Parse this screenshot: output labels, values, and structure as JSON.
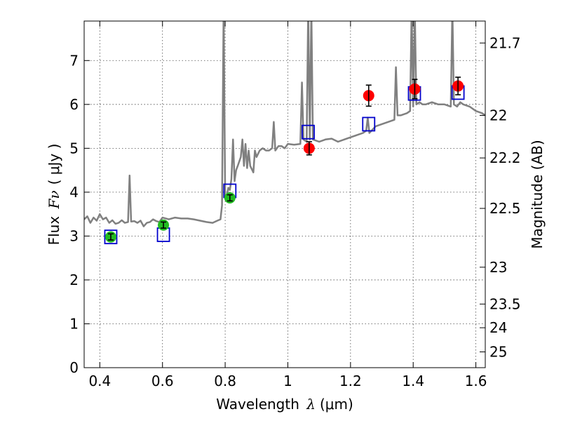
{
  "chart_data": {
    "type": "scatter",
    "xlabel": "Wavelength λ (μm)",
    "xlabel_parts": {
      "prefix": "Wavelength ",
      "symbol": "λ",
      "unit": "(μm)"
    },
    "ylabel": "Flux Fν (μJy)",
    "ylabel_parts": {
      "prefix": "Flux ",
      "symbol": "Fν",
      "unit": "( μJy )"
    },
    "y2label": "Magnitude (AB)",
    "xlim": [
      0.35,
      1.63
    ],
    "ylim": [
      0,
      7.9
    ],
    "grid": true,
    "x_ticks": [
      0.4,
      0.6,
      0.8,
      1.0,
      1.2,
      1.4,
      1.6
    ],
    "x_tick_labels": [
      "0.4",
      "0.6",
      "0.8",
      "1",
      "1.2",
      "1.4",
      "1.6"
    ],
    "y_ticks": [
      0,
      1,
      2,
      3,
      4,
      5,
      6,
      7
    ],
    "y_tick_labels": [
      "0",
      "1",
      "2",
      "3",
      "4",
      "5",
      "6",
      "7"
    ],
    "y2_ticks": [
      {
        "label": "21.7",
        "flux": 7.4
      },
      {
        "label": "22",
        "flux": 5.75
      },
      {
        "label": "22.2",
        "flux": 4.78
      },
      {
        "label": "22.5",
        "flux": 3.63
      },
      {
        "label": "23",
        "flux": 2.29
      },
      {
        "label": "23.5",
        "flux": 1.45
      },
      {
        "label": "24",
        "flux": 0.91
      },
      {
        "label": "25",
        "flux": 0.36
      }
    ],
    "series": [
      {
        "kind": "line",
        "color": "#808080",
        "points": [
          [
            0.35,
            3.38
          ],
          [
            0.36,
            3.45
          ],
          [
            0.37,
            3.3
          ],
          [
            0.38,
            3.42
          ],
          [
            0.39,
            3.35
          ],
          [
            0.4,
            3.5
          ],
          [
            0.41,
            3.38
          ],
          [
            0.42,
            3.42
          ],
          [
            0.43,
            3.3
          ],
          [
            0.44,
            3.36
          ],
          [
            0.45,
            3.28
          ],
          [
            0.46,
            3.3
          ],
          [
            0.47,
            3.36
          ],
          [
            0.48,
            3.3
          ],
          [
            0.49,
            3.32
          ],
          [
            0.495,
            4.38
          ],
          [
            0.5,
            3.33
          ],
          [
            0.51,
            3.34
          ],
          [
            0.52,
            3.3
          ],
          [
            0.53,
            3.35
          ],
          [
            0.54,
            3.22
          ],
          [
            0.55,
            3.3
          ],
          [
            0.56,
            3.32
          ],
          [
            0.57,
            3.38
          ],
          [
            0.58,
            3.34
          ],
          [
            0.59,
            3.32
          ],
          [
            0.6,
            3.42
          ],
          [
            0.62,
            3.38
          ],
          [
            0.64,
            3.42
          ],
          [
            0.66,
            3.4
          ],
          [
            0.68,
            3.4
          ],
          [
            0.7,
            3.38
          ],
          [
            0.72,
            3.35
          ],
          [
            0.74,
            3.32
          ],
          [
            0.76,
            3.3
          ],
          [
            0.775,
            3.35
          ],
          [
            0.785,
            3.38
          ],
          [
            0.79,
            3.7
          ],
          [
            0.795,
            8.2
          ],
          [
            0.8,
            3.9
          ],
          [
            0.805,
            3.88
          ],
          [
            0.81,
            4.1
          ],
          [
            0.815,
            4.05
          ],
          [
            0.82,
            4.3
          ],
          [
            0.825,
            5.2
          ],
          [
            0.83,
            4.25
          ],
          [
            0.835,
            4.5
          ],
          [
            0.84,
            4.6
          ],
          [
            0.845,
            4.7
          ],
          [
            0.85,
            4.8
          ],
          [
            0.855,
            5.2
          ],
          [
            0.86,
            4.6
          ],
          [
            0.865,
            5.1
          ],
          [
            0.87,
            4.55
          ],
          [
            0.875,
            4.95
          ],
          [
            0.88,
            4.6
          ],
          [
            0.89,
            4.45
          ],
          [
            0.895,
            4.95
          ],
          [
            0.9,
            4.8
          ],
          [
            0.91,
            4.95
          ],
          [
            0.92,
            5.0
          ],
          [
            0.93,
            4.95
          ],
          [
            0.94,
            4.95
          ],
          [
            0.95,
            5.0
          ],
          [
            0.955,
            5.6
          ],
          [
            0.96,
            4.95
          ],
          [
            0.97,
            5.05
          ],
          [
            0.98,
            5.05
          ],
          [
            0.99,
            5.0
          ],
          [
            1.0,
            5.1
          ],
          [
            1.02,
            5.08
          ],
          [
            1.04,
            5.1
          ],
          [
            1.045,
            6.5
          ],
          [
            1.05,
            5.2
          ],
          [
            1.06,
            5.15
          ],
          [
            1.065,
            8.2
          ],
          [
            1.07,
            5.2
          ],
          [
            1.075,
            8.2
          ],
          [
            1.08,
            5.2
          ],
          [
            1.1,
            5.15
          ],
          [
            1.12,
            5.2
          ],
          [
            1.14,
            5.22
          ],
          [
            1.16,
            5.15
          ],
          [
            1.18,
            5.2
          ],
          [
            1.2,
            5.25
          ],
          [
            1.22,
            5.3
          ],
          [
            1.24,
            5.35
          ],
          [
            1.25,
            5.4
          ],
          [
            1.255,
            5.7
          ],
          [
            1.26,
            5.35
          ],
          [
            1.28,
            5.5
          ],
          [
            1.3,
            5.55
          ],
          [
            1.32,
            5.6
          ],
          [
            1.34,
            5.65
          ],
          [
            1.345,
            6.85
          ],
          [
            1.35,
            5.75
          ],
          [
            1.36,
            5.75
          ],
          [
            1.38,
            5.8
          ],
          [
            1.39,
            5.85
          ],
          [
            1.395,
            8.2
          ],
          [
            1.4,
            5.95
          ],
          [
            1.405,
            8.2
          ],
          [
            1.41,
            6.0
          ],
          [
            1.42,
            6.05
          ],
          [
            1.43,
            6.0
          ],
          [
            1.44,
            6.0
          ],
          [
            1.46,
            6.05
          ],
          [
            1.48,
            6.0
          ],
          [
            1.5,
            6.0
          ],
          [
            1.52,
            5.95
          ],
          [
            1.525,
            8.2
          ],
          [
            1.53,
            6.0
          ],
          [
            1.54,
            5.95
          ],
          [
            1.55,
            6.05
          ],
          [
            1.56,
            6.0
          ],
          [
            1.58,
            5.95
          ],
          [
            1.6,
            5.85
          ],
          [
            1.62,
            5.8
          ],
          [
            1.63,
            5.75
          ]
        ]
      },
      {
        "kind": "squares",
        "color": "#0000cc",
        "x": [
          0.435,
          0.603,
          0.815,
          1.065,
          1.258,
          1.404,
          1.543
        ],
        "y": [
          2.98,
          3.03,
          4.03,
          5.37,
          5.55,
          6.25,
          6.27
        ]
      },
      {
        "kind": "points",
        "color": "#22bb22",
        "x": [
          0.435,
          0.603,
          0.815
        ],
        "y": [
          2.98,
          3.25,
          3.87
        ],
        "yerr": [
          0.07,
          0.07,
          0.07
        ]
      },
      {
        "kind": "points",
        "color": "#ff0000",
        "x": [
          1.068,
          1.258,
          1.405,
          1.543
        ],
        "y": [
          5.0,
          6.2,
          6.35,
          6.42
        ],
        "yerr": [
          0.15,
          0.24,
          0.22,
          0.2
        ]
      }
    ]
  }
}
